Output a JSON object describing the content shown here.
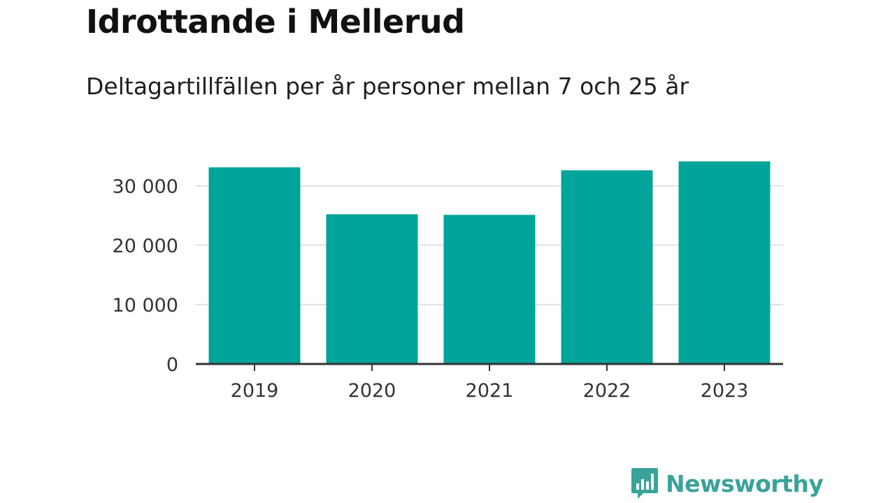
{
  "colors": {
    "bar": "#00a49a",
    "grid": "#e2e2e2",
    "axis": "#333333",
    "logo": "#3aa39a"
  },
  "chart_data": {
    "type": "bar",
    "title": "Idrottande i Mellerud",
    "subtitle": "Deltagartillfällen per år personer mellan 7 och 25 år",
    "categories": [
      "2019",
      "2020",
      "2021",
      "2022",
      "2023"
    ],
    "values": [
      33100,
      25200,
      25100,
      32600,
      34100
    ],
    "xlabel": "",
    "ylabel": "",
    "ylim": [
      0,
      34100
    ],
    "yticks": [
      0,
      10000,
      20000,
      30000
    ],
    "ytick_labels": [
      "0",
      "10 000",
      "20 000",
      "30 000"
    ],
    "grid": true,
    "legend": "none"
  },
  "branding": {
    "logo_text": "Newsworthy",
    "logo_icon": "bar-chart-speech-bubble-icon"
  }
}
